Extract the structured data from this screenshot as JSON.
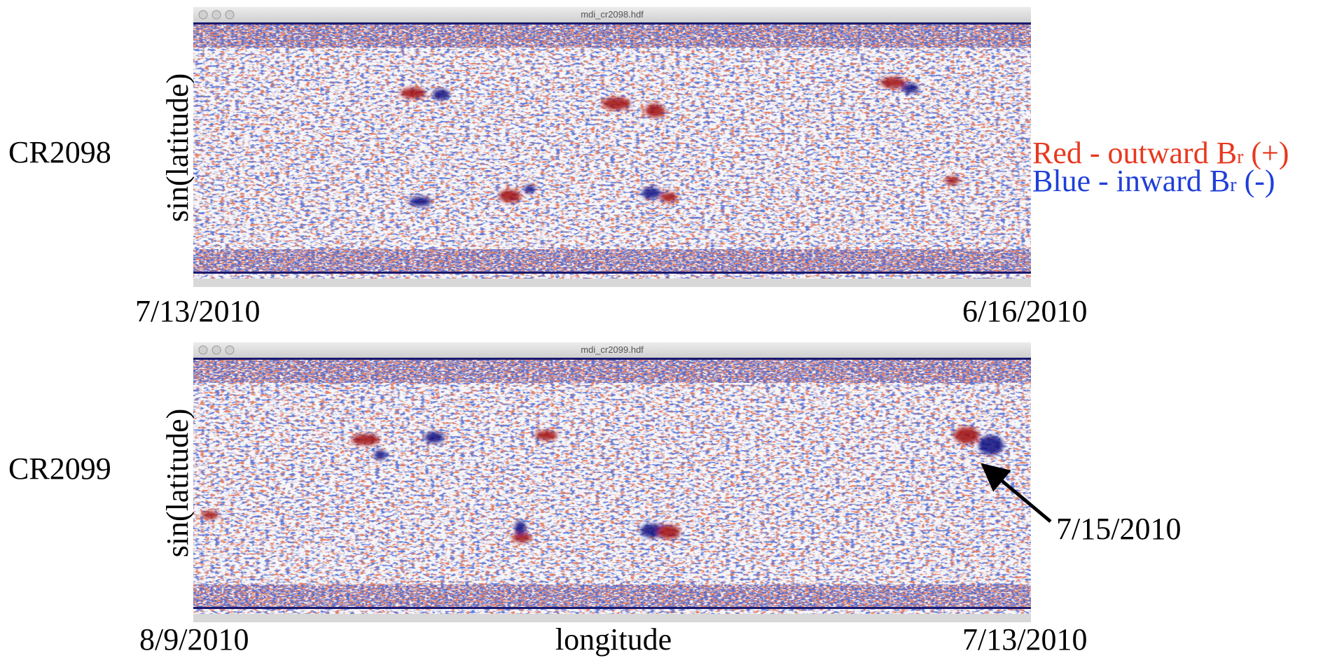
{
  "panels": [
    {
      "window_title": "mdi_cr2098.hdf",
      "label": "CR2098",
      "y_axis_label": "sin(latitude)",
      "left_date": "7/13/2010",
      "right_date": "6/16/2010"
    },
    {
      "window_title": "mdi_cr2099.hdf",
      "label": "CR2099",
      "y_axis_label": "sin(latitude)",
      "left_date": "8/9/2010",
      "right_date": "7/13/2010"
    }
  ],
  "x_axis_label": "longitude",
  "legend": [
    {
      "prefix": "Red - outward B",
      "subscript": "r",
      "suffix": " (+)"
    },
    {
      "prefix": "Blue - inward B",
      "subscript": "r",
      "suffix": " (-)"
    }
  ],
  "annotation": "7/15/2010"
}
